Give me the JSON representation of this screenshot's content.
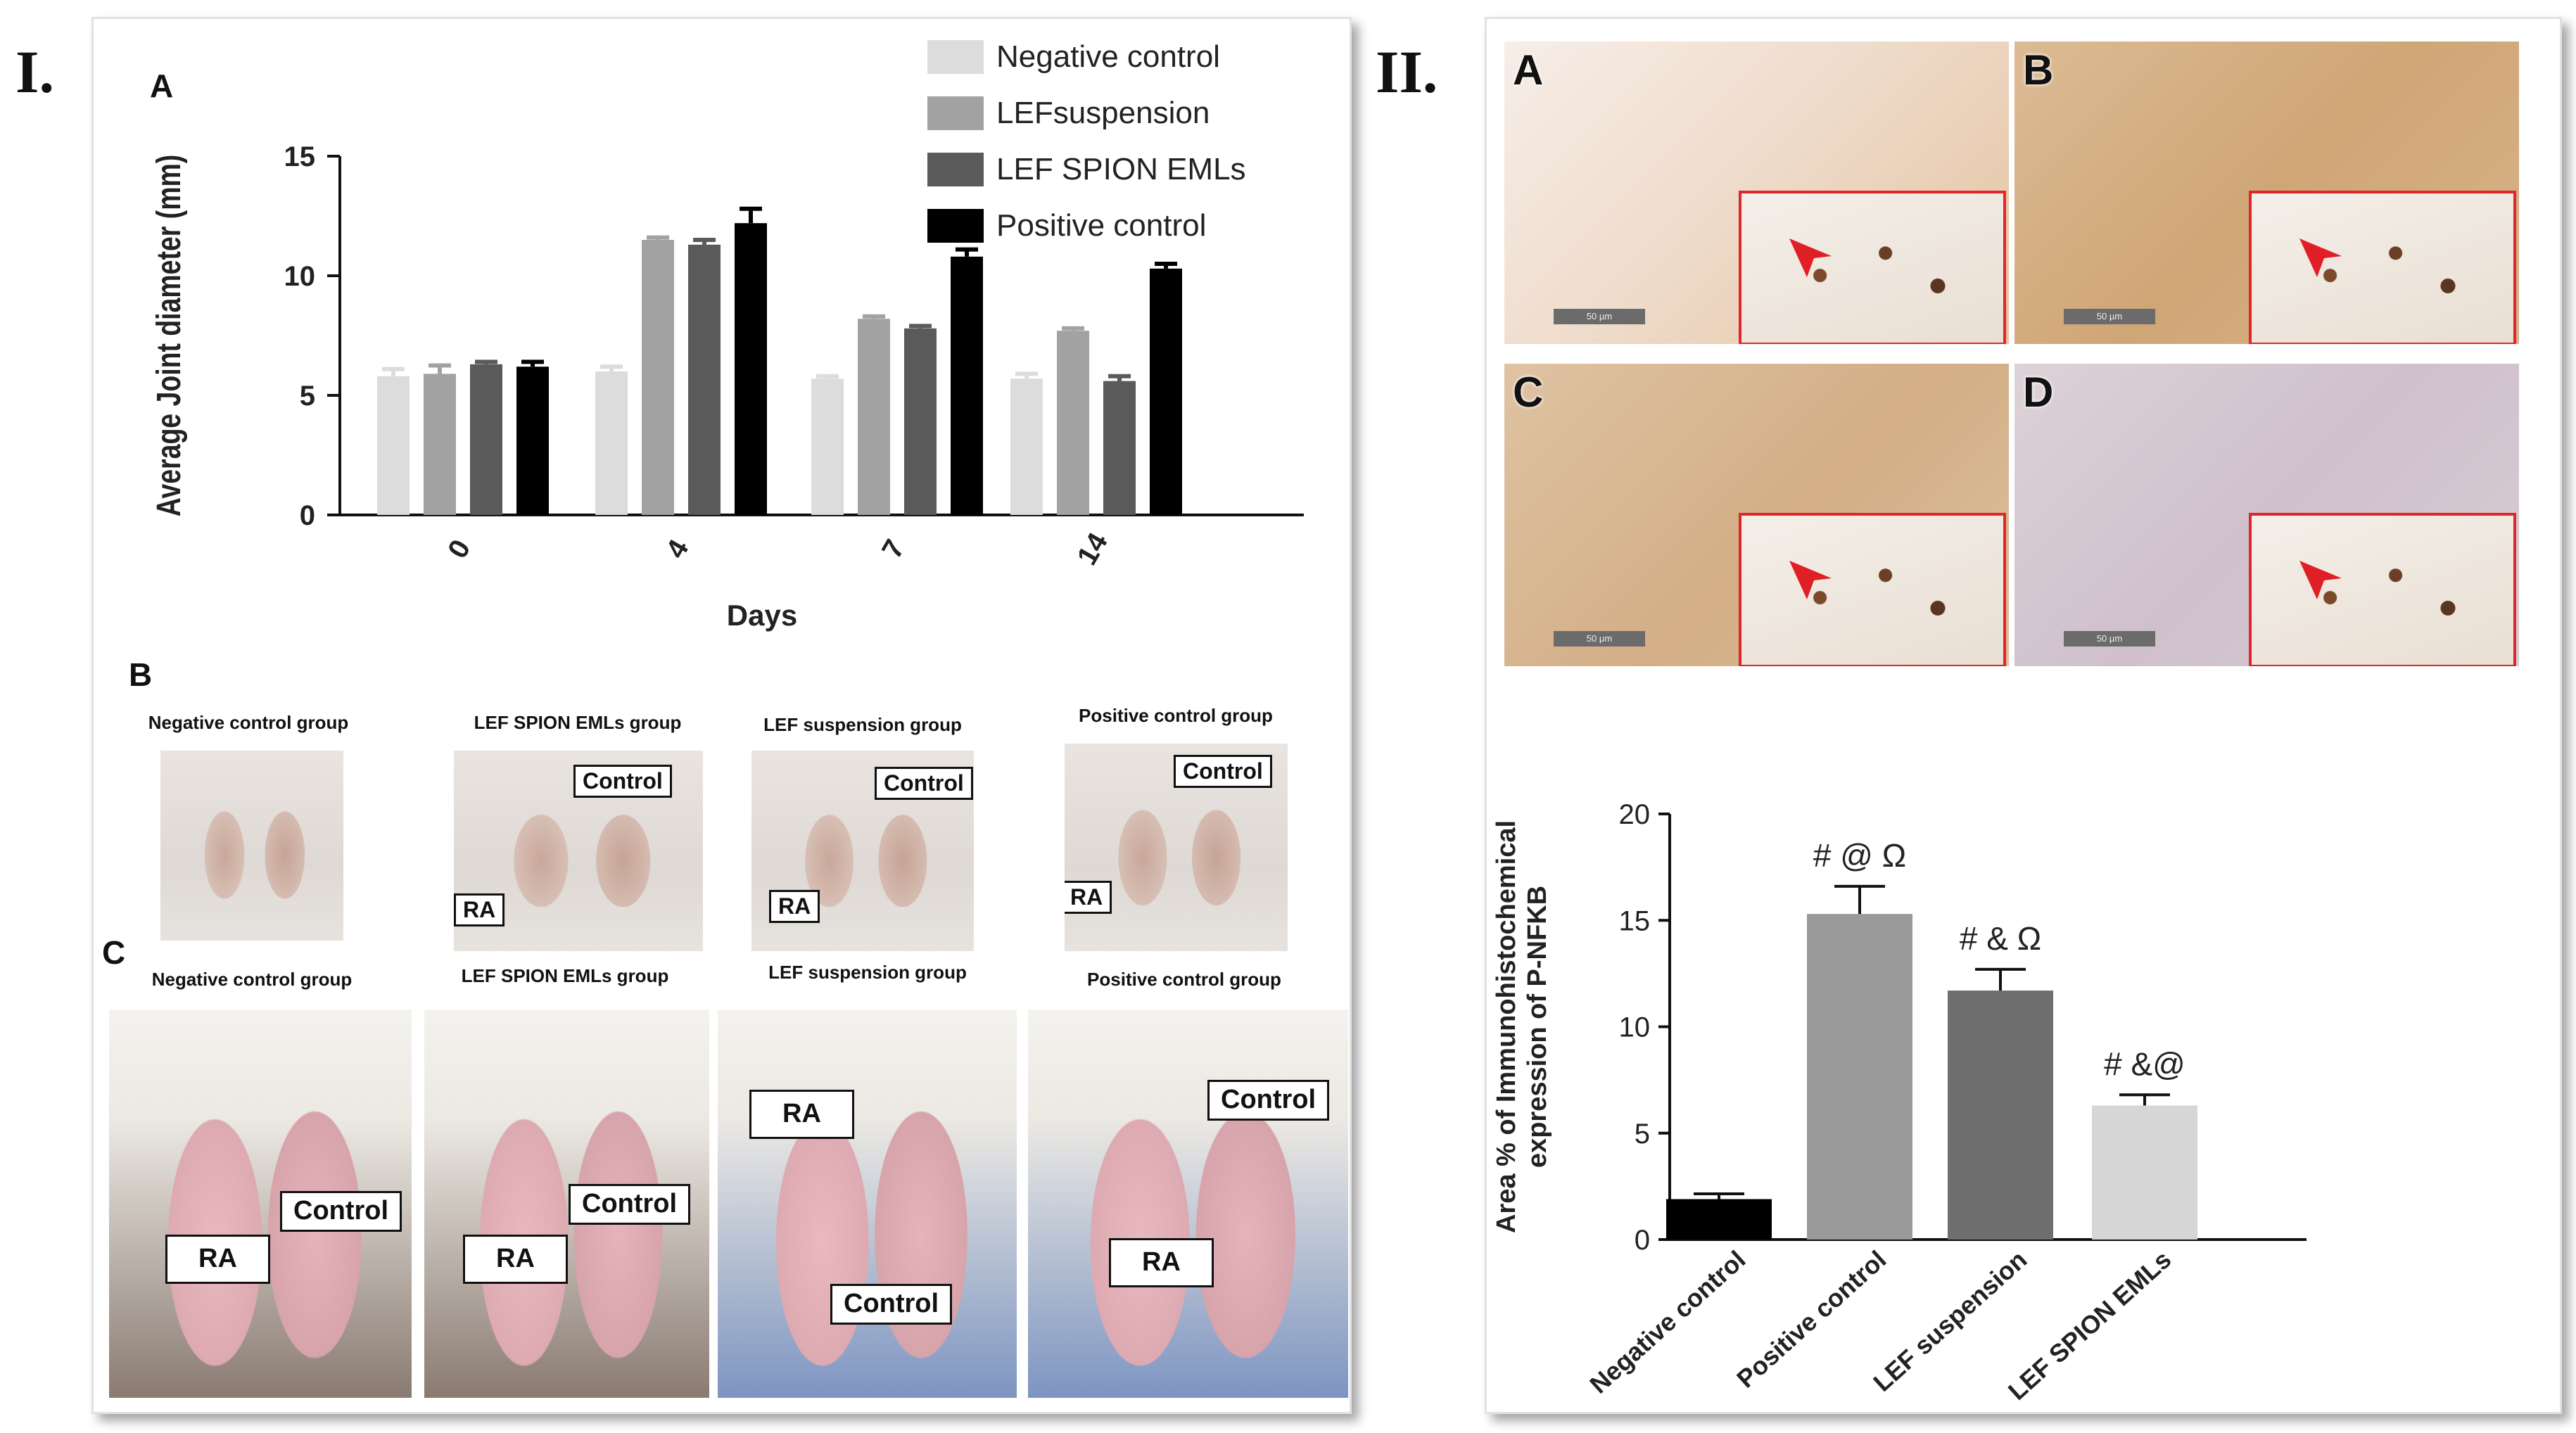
{
  "figure": {
    "panel_I_label": "I.",
    "panel_II_label": "II."
  },
  "panel_I": {
    "sub_A": "A",
    "sub_B": "B",
    "sub_C": "C",
    "photos_B": [
      {
        "label": "Negative control group",
        "tags": []
      },
      {
        "label": "LEF SPION EMLs group",
        "tags": [
          "Control",
          "RA"
        ]
      },
      {
        "label": "LEF suspension group",
        "tags": [
          "Control",
          "RA"
        ]
      },
      {
        "label": "Positive  control group",
        "tags": [
          "Control",
          "RA"
        ]
      }
    ],
    "photos_C": [
      {
        "label": "Negative control group",
        "tags": [
          "Control",
          "RA"
        ]
      },
      {
        "label": "LEF SPION EMLs group",
        "tags": [
          "Control",
          "RA"
        ]
      },
      {
        "label": "LEF suspension group",
        "tags": [
          "RA",
          "Control"
        ]
      },
      {
        "label": "Positive  control group",
        "tags": [
          "Control",
          "RA"
        ]
      }
    ]
  },
  "panel_II": {
    "hist_letters": [
      "A",
      "B",
      "C",
      "D"
    ],
    "scale_label": "50 µm"
  },
  "colors": {
    "negative_control": "#dcdcdc",
    "lef_suspension": "#a2a2a2",
    "lef_spion_emls": "#5a5a5a",
    "positive_control": "#000000",
    "inset_border": "#e0262b",
    "arrow": "#e01e25"
  },
  "chart_data": [
    {
      "type": "bar",
      "xlabel": "Days",
      "ylabel": "Average Joint diameter (mm)",
      "ylim": [
        0,
        15
      ],
      "yticks": [
        0,
        5,
        10,
        15
      ],
      "categories": [
        "0",
        "4",
        "7",
        "14"
      ],
      "legend_placement": "top-right",
      "series": [
        {
          "name": "Negative control",
          "color": "#dcdcdc",
          "values": [
            5.8,
            6.0,
            5.7,
            5.7
          ],
          "errors": [
            0.3,
            0.2,
            0.1,
            0.2
          ]
        },
        {
          "name": "LEFsuspension",
          "color": "#a2a2a2",
          "values": [
            5.9,
            11.5,
            8.2,
            7.7
          ],
          "errors": [
            0.35,
            0.1,
            0.1,
            0.1
          ]
        },
        {
          "name": "LEF SPION EMLs",
          "color": "#5a5a5a",
          "values": [
            6.3,
            11.3,
            7.8,
            5.6
          ],
          "errors": [
            0.1,
            0.2,
            0.1,
            0.2
          ]
        },
        {
          "name": "Positive control",
          "color": "#000000",
          "values": [
            6.2,
            12.2,
            10.8,
            10.3
          ],
          "errors": [
            0.2,
            0.6,
            0.3,
            0.2
          ]
        }
      ]
    },
    {
      "type": "bar",
      "ylabel_lines": [
        "Area % of Immunohistochemical",
        "expression of P-NFKB"
      ],
      "ylim": [
        0,
        20
      ],
      "yticks": [
        0,
        5,
        10,
        15,
        20
      ],
      "categories": [
        "Negative control",
        "Positive control",
        "LEF suspension",
        "LEF SPION EMLs"
      ],
      "colors": [
        "#000000",
        "#9a9a9a",
        "#6e6e6e",
        "#d6d6d6"
      ],
      "values": [
        1.9,
        15.3,
        11.7,
        6.3
      ],
      "errors": [
        0.25,
        1.3,
        1.0,
        0.5
      ],
      "annotations": [
        "",
        "# @ Ω",
        "# & Ω",
        "# &@"
      ]
    }
  ]
}
